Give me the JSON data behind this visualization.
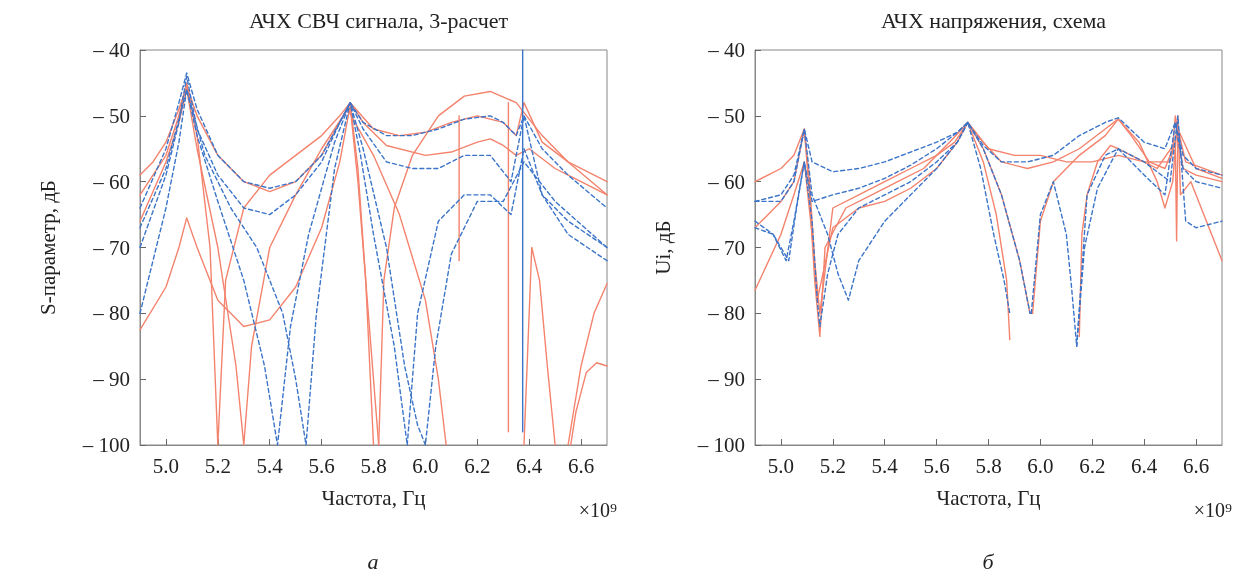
{
  "chart_data": [
    {
      "type": "line",
      "title": "АЧХ СВЧ сигнала, 3-расчет",
      "xlabel": "Частота, Гц",
      "ylabel": "S-параметр, дБ",
      "annotations": [
        "×10⁹",
        "а"
      ],
      "xlim": [
        4.9,
        6.7
      ],
      "xticks": [
        {
          "value": 5.0,
          "label": "5.0"
        },
        {
          "value": 5.2,
          "label": "5.2"
        },
        {
          "value": 5.4,
          "label": "5.4"
        },
        {
          "value": 5.6,
          "label": "5.6"
        },
        {
          "value": 5.8,
          "label": "5.8"
        },
        {
          "value": 6.0,
          "label": "6.0"
        },
        {
          "value": 6.2,
          "label": "6.2"
        },
        {
          "value": 6.4,
          "label": "6.4"
        },
        {
          "value": 6.6,
          "label": "6.6"
        }
      ],
      "ylim": [
        -100,
        -40
      ],
      "yticks": [
        {
          "value": -100,
          "label": "– 100"
        },
        {
          "value": -90,
          "label": "– 90"
        },
        {
          "value": -80,
          "label": "– 80"
        },
        {
          "value": -70,
          "label": "– 70"
        },
        {
          "value": -60,
          "label": "– 60"
        },
        {
          "value": -50,
          "label": "– 50"
        },
        {
          "value": -40,
          "label": "– 40"
        }
      ],
      "series": [
        {
          "color": "#f4836d",
          "line_style": "solid",
          "x": [
            4.9,
            4.95,
            5.0,
            5.05,
            5.08,
            5.12,
            5.2,
            5.3,
            5.4,
            5.5,
            5.6,
            5.67,
            5.71,
            5.76,
            5.85,
            6.0,
            6.1,
            6.2,
            6.25,
            6.3,
            6.35,
            6.4,
            6.5,
            6.6,
            6.7
          ],
          "values": [
            -59,
            -57,
            -54,
            -49,
            -45.5,
            -50,
            -56,
            -60,
            -61.5,
            -60,
            -56,
            -51,
            -48,
            -51,
            -54.5,
            -56,
            -55.5,
            -54,
            -53.5,
            -54.5,
            -56,
            -55,
            -58,
            -60,
            -62
          ]
        },
        {
          "color": "#f4836d",
          "line_style": "solid",
          "x": [
            4.9,
            5.0,
            5.05,
            5.08,
            5.12,
            5.17,
            5.2,
            5.23,
            5.3,
            5.4,
            5.5,
            5.6,
            5.67,
            5.71,
            5.74,
            5.77,
            5.8
          ],
          "values": [
            -62,
            -56,
            -50,
            -45,
            -53,
            -70,
            -100,
            -75,
            -64,
            -59,
            -56,
            -53,
            -50,
            -48,
            -58,
            -75,
            -100
          ]
        },
        {
          "color": "#f4836d",
          "line_style": "solid",
          "x": [
            4.9,
            5.0,
            5.05,
            5.08,
            5.12,
            5.2,
            5.3,
            5.4,
            5.5,
            5.6,
            5.67,
            5.71,
            5.74,
            5.78,
            5.82
          ],
          "values": [
            -82.5,
            -76,
            -70,
            -65.5,
            -70,
            -78,
            -82,
            -81,
            -76,
            -67,
            -57,
            -48.5,
            -60,
            -80,
            -100
          ]
        },
        {
          "color": "#f4836d",
          "line_style": "solid",
          "x": [
            4.9,
            5.0,
            5.05,
            5.08,
            5.12,
            5.2,
            5.27,
            5.3,
            5.33,
            5.4,
            5.5,
            5.6,
            5.7,
            5.8,
            5.9,
            6.0,
            6.05,
            6.08
          ],
          "values": [
            -66,
            -57,
            -51,
            -46,
            -55,
            -70,
            -88,
            -100,
            -85,
            -70,
            -62,
            -55,
            -49,
            -56,
            -65,
            -78,
            -90,
            -100
          ]
        },
        {
          "color": "#f4836d",
          "line_style": "solid",
          "x": [
            5.82,
            5.84,
            5.88,
            5.95,
            6.05,
            6.15,
            6.25,
            6.35,
            6.45,
            6.55,
            6.7
          ],
          "values": [
            -100,
            -75,
            -64,
            -56,
            -50,
            -47,
            -46.3,
            -48,
            -53,
            -57,
            -62
          ]
        },
        {
          "color": "#f4836d",
          "line_style": "solid",
          "x": [
            5.71,
            5.8,
            5.9,
            6.0,
            6.1,
            6.2,
            6.3,
            6.35,
            6.38,
            6.45,
            6.55,
            6.7
          ],
          "values": [
            -48,
            -52,
            -53,
            -52.5,
            -51,
            -50,
            -51,
            -53,
            -48,
            -54,
            -57,
            -60
          ]
        },
        {
          "color": "#f4836d",
          "line_style": "solid",
          "x": [
            6.38,
            6.41,
            6.44,
            6.47,
            6.5
          ],
          "values": [
            -100,
            -70,
            -75,
            -88,
            -100
          ]
        },
        {
          "color": "#f4836d",
          "line_style": "solid",
          "x": [
            6.56,
            6.58,
            6.62,
            6.66,
            6.7
          ],
          "values": [
            -100,
            -95,
            -89,
            -87.5,
            -88
          ]
        },
        {
          "color": "#f4836d",
          "line_style": "solid",
          "x": [
            6.55,
            6.6,
            6.65,
            6.7
          ],
          "values": [
            -100,
            -88,
            -80,
            -75.5
          ]
        },
        {
          "color": "#f4836d",
          "line_style": "solid",
          "x": [
            6.13,
            6.13
          ],
          "values": [
            -50,
            -72
          ]
        },
        {
          "color": "#f4836d",
          "line_style": "solid",
          "x": [
            6.32,
            6.32
          ],
          "values": [
            -48,
            -98
          ]
        },
        {
          "color": "#3b74c9",
          "line_style": "dashed",
          "x": [
            4.9,
            5.0,
            5.05,
            5.08,
            5.12,
            5.2,
            5.3,
            5.4,
            5.5,
            5.6,
            5.67,
            5.71,
            5.76,
            5.85,
            5.95,
            6.05,
            6.15,
            6.25,
            6.3,
            6.35,
            6.38,
            6.45,
            6.55,
            6.7
          ],
          "values": [
            -64,
            -55,
            -48,
            -43.5,
            -49,
            -56,
            -60,
            -61,
            -60,
            -56,
            -51,
            -48,
            -51,
            -53,
            -53,
            -52,
            -50.5,
            -50,
            -51,
            -53,
            -50,
            -55,
            -59,
            -64
          ]
        },
        {
          "color": "#3b74c9",
          "line_style": "dashed",
          "x": [
            4.9,
            5.0,
            5.05,
            5.08,
            5.12,
            5.2,
            5.3,
            5.4,
            5.5,
            5.6,
            5.67,
            5.71,
            5.76,
            5.85,
            5.95,
            6.05,
            6.15,
            6.25,
            6.33,
            6.38,
            6.45,
            6.55,
            6.7
          ],
          "values": [
            -70,
            -59,
            -51,
            -44,
            -52,
            -59,
            -64,
            -65,
            -62,
            -57,
            -51,
            -48,
            -52,
            -57,
            -58,
            -58,
            -56,
            -56,
            -60,
            -50,
            -62,
            -66,
            -70
          ]
        },
        {
          "color": "#3b74c9",
          "line_style": "dashed",
          "x": [
            4.9,
            5.0,
            5.05,
            5.08,
            5.12,
            5.2,
            5.3,
            5.38,
            5.43,
            5.48,
            5.55,
            5.65,
            5.71,
            5.75,
            5.8,
            5.88,
            5.93,
            5.97,
            6.05,
            6.15,
            6.25,
            6.33,
            6.38,
            6.45,
            6.55,
            6.7
          ],
          "values": [
            -80,
            -64,
            -54,
            -46,
            -53,
            -63,
            -75,
            -88,
            -100,
            -82,
            -68,
            -54,
            -48,
            -56,
            -68,
            -85,
            -100,
            -80,
            -66,
            -62,
            -62,
            -65,
            -55,
            -62,
            -68,
            -72
          ]
        },
        {
          "color": "#3b74c9",
          "line_style": "dashed",
          "x": [
            4.9,
            5.0,
            5.08,
            5.15,
            5.25,
            5.35,
            5.45,
            5.5,
            5.54,
            5.58,
            5.65,
            5.71,
            5.76,
            5.85,
            5.92,
            5.97,
            6.0,
            6.04,
            6.1,
            6.2,
            6.3,
            6.38,
            6.5,
            6.7
          ],
          "values": [
            -67,
            -58,
            -46,
            -56,
            -64,
            -70,
            -80,
            -90,
            -100,
            -80,
            -58,
            -48,
            -55,
            -70,
            -88,
            -97,
            -100,
            -85,
            -71,
            -63,
            -63,
            -57,
            -63,
            -70
          ]
        },
        {
          "color": "#3b74c9",
          "line_style": "solid",
          "x": [
            6.375,
            6.375
          ],
          "values": [
            -40,
            -98
          ]
        }
      ]
    },
    {
      "type": "line",
      "title": "АЧХ напряжения, схема",
      "xlabel": "Частота, Гц",
      "ylabel": "Ui, дБ",
      "annotations": [
        "×10⁹",
        "б"
      ],
      "xlim": [
        4.9,
        6.7
      ],
      "xticks": [
        {
          "value": 5.0,
          "label": "5.0"
        },
        {
          "value": 5.2,
          "label": "5.2"
        },
        {
          "value": 5.4,
          "label": "5.4"
        },
        {
          "value": 5.6,
          "label": "5.6"
        },
        {
          "value": 5.8,
          "label": "5.8"
        },
        {
          "value": 6.0,
          "label": "6.0"
        },
        {
          "value": 6.2,
          "label": "6.2"
        },
        {
          "value": 6.4,
          "label": "6.4"
        },
        {
          "value": 6.6,
          "label": "6.6"
        }
      ],
      "ylim": [
        -100,
        -40
      ],
      "yticks": [
        {
          "value": -100,
          "label": "– 100"
        },
        {
          "value": -90,
          "label": "– 90"
        },
        {
          "value": -80,
          "label": "– 80"
        },
        {
          "value": -70,
          "label": "– 70"
        },
        {
          "value": -60,
          "label": "– 60"
        },
        {
          "value": -50,
          "label": "– 50"
        },
        {
          "value": -40,
          "label": "– 40"
        }
      ],
      "series": [
        {
          "color": "#f4836d",
          "line_style": "solid",
          "x": [
            4.9,
            5.0,
            5.05,
            5.09,
            5.11,
            5.13,
            5.15,
            5.2,
            5.3,
            5.4,
            5.5,
            5.6,
            5.67,
            5.72,
            5.78,
            5.85,
            5.95,
            6.05,
            6.15,
            6.25,
            6.3,
            6.35,
            6.42,
            6.48,
            6.51,
            6.52,
            6.55,
            6.6,
            6.7
          ],
          "values": [
            -60,
            -58,
            -56,
            -52,
            -60,
            -72,
            -80,
            -64,
            -62,
            -60,
            -58,
            -56,
            -54,
            -51,
            -54,
            -57,
            -58,
            -57,
            -55,
            -52,
            -50.5,
            -53,
            -57,
            -58,
            -55,
            -50,
            -58,
            -59,
            -60
          ]
        },
        {
          "color": "#f4836d",
          "line_style": "solid",
          "x": [
            4.9,
            5.0,
            5.05,
            5.09,
            5.11,
            5.13,
            5.15,
            5.17,
            5.25,
            5.35,
            5.45,
            5.55,
            5.65,
            5.72,
            5.78,
            5.83,
            5.87,
            5.882
          ],
          "values": [
            -67,
            -63,
            -60,
            -52,
            -62,
            -75,
            -83.5,
            -70,
            -64,
            -62,
            -60,
            -58,
            -54,
            -51,
            -57,
            -65,
            -75,
            -84
          ]
        },
        {
          "color": "#f4836d",
          "line_style": "solid",
          "x": [
            4.9,
            5.0,
            5.05,
            5.09,
            5.12,
            5.14,
            5.2,
            5.3,
            5.4,
            5.5,
            5.6,
            5.68,
            5.72,
            5.78,
            5.85,
            5.92,
            5.96,
            5.97
          ],
          "values": [
            -76.5,
            -68,
            -62,
            -57,
            -68,
            -78,
            -67,
            -64,
            -63,
            -61,
            -58,
            -54,
            -51,
            -55,
            -62,
            -72,
            -80,
            -80
          ]
        },
        {
          "color": "#f4836d",
          "line_style": "solid",
          "x": [
            5.97,
            6.0,
            6.05,
            6.15,
            6.25,
            6.3,
            6.38,
            6.45,
            6.48,
            6.51,
            6.53,
            6.54,
            6.58,
            6.64,
            6.7
          ],
          "values": [
            -80,
            -66,
            -60,
            -56,
            -53,
            -50.5,
            -54,
            -60,
            -64,
            -60,
            -50,
            -62,
            -60,
            -66,
            -72
          ]
        },
        {
          "color": "#f4836d",
          "line_style": "solid",
          "x": [
            6.15,
            6.16,
            6.18,
            6.22,
            6.27,
            6.3,
            6.35,
            6.45,
            6.52,
            6.525,
            6.53,
            6.56,
            6.7
          ],
          "values": [
            -83.5,
            -68,
            -62,
            -57,
            -54.5,
            -55,
            -56,
            -58,
            -54,
            -69,
            -52,
            -57,
            -59
          ]
        },
        {
          "color": "#f4836d",
          "line_style": "solid",
          "x": [
            5.72,
            5.8,
            5.9,
            6.0,
            6.1,
            6.2,
            6.3,
            6.4,
            6.5,
            6.53,
            6.6,
            6.7
          ],
          "values": [
            -51,
            -55,
            -56,
            -56,
            -57,
            -57,
            -56,
            -57,
            -57,
            -52,
            -58,
            -59.5
          ]
        },
        {
          "color": "#3b74c9",
          "line_style": "dashed",
          "x": [
            4.9,
            5.0,
            5.05,
            5.09,
            5.12,
            5.2,
            5.3,
            5.4,
            5.5,
            5.6,
            5.68,
            5.72,
            5.78,
            5.85,
            5.95,
            6.05,
            6.15,
            6.25,
            6.3,
            6.4,
            6.48,
            6.52,
            6.55,
            6.6,
            6.7
          ],
          "values": [
            -63,
            -63,
            -60,
            -52,
            -57,
            -58.5,
            -58,
            -57,
            -55.5,
            -54,
            -52.5,
            -51,
            -54.5,
            -57,
            -57,
            -56,
            -53,
            -51,
            -50.3,
            -54,
            -55,
            -51,
            -56,
            -58,
            -59
          ]
        },
        {
          "color": "#3b74c9",
          "line_style": "dashed",
          "x": [
            4.9,
            4.97,
            5.02,
            5.05,
            5.09,
            5.12,
            5.2,
            5.3,
            5.4,
            5.5,
            5.6,
            5.68,
            5.72,
            5.77,
            5.82,
            5.86,
            5.882
          ],
          "values": [
            -66,
            -68,
            -72,
            -66,
            -57,
            -63,
            -62,
            -61,
            -59.5,
            -57.5,
            -55,
            -52.5,
            -51,
            -58,
            -68,
            -75,
            -80
          ]
        },
        {
          "color": "#3b74c9",
          "line_style": "dashed",
          "x": [
            4.9,
            4.97,
            5.0,
            5.03,
            5.06,
            5.09,
            5.12,
            5.14,
            5.15,
            5.18,
            5.22,
            5.26,
            5.3,
            5.4,
            5.5,
            5.6,
            5.68,
            5.72
          ],
          "values": [
            -67,
            -68,
            -70,
            -72,
            -64,
            -57,
            -66,
            -78,
            -82,
            -74,
            -68,
            -66,
            -64,
            -62,
            -60,
            -57,
            -54,
            -51
          ]
        },
        {
          "color": "#3b74c9",
          "line_style": "dashed",
          "x": [
            4.9,
            5.0,
            5.05,
            5.09,
            5.12,
            5.18,
            5.22,
            5.26,
            5.3,
            5.4,
            5.5,
            5.6,
            5.68,
            5.72,
            5.78,
            5.85,
            5.92,
            5.96,
            5.965
          ],
          "values": [
            -63,
            -62,
            -59,
            -52,
            -62,
            -68,
            -74,
            -78,
            -72,
            -66,
            -62,
            -58,
            -54,
            -51,
            -55,
            -62,
            -72,
            -80,
            -80
          ]
        },
        {
          "color": "#3b74c9",
          "line_style": "dashed",
          "x": [
            5.965,
            6.0,
            6.05,
            6.1,
            6.12,
            6.14,
            6.17,
            6.22,
            6.3,
            6.4,
            6.5,
            6.53,
            6.56,
            6.6,
            6.65,
            6.7
          ],
          "values": [
            -80,
            -65,
            -60,
            -68,
            -76,
            -85,
            -70,
            -61,
            -55,
            -57,
            -60,
            -50,
            -66,
            -67,
            -66.5,
            -66
          ]
        },
        {
          "color": "#3b74c9",
          "line_style": "dashed",
          "x": [
            6.14,
            6.18,
            6.25,
            6.3,
            6.4,
            6.48,
            6.52,
            6.55,
            6.6,
            6.7
          ],
          "values": [
            -85,
            -62,
            -56,
            -55,
            -59,
            -62,
            -51,
            -58,
            -60,
            -61
          ]
        }
      ]
    }
  ]
}
